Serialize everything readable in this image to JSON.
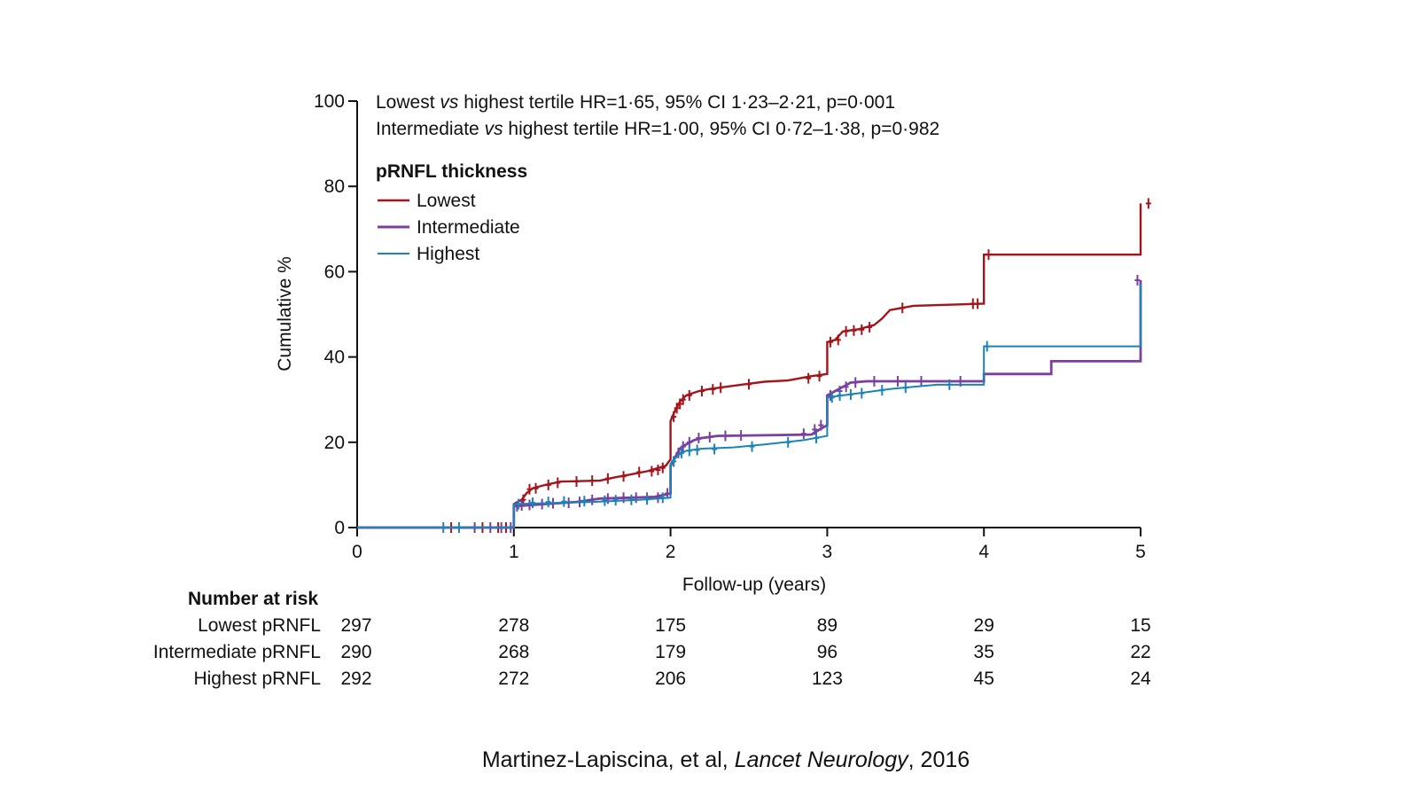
{
  "chart_data": {
    "type": "line",
    "step": true,
    "title": "",
    "xlabel": "Follow-up (years)",
    "ylabel": "Cumulative %",
    "xlim": [
      0,
      5
    ],
    "ylim": [
      0,
      100
    ],
    "xticks": [
      "0",
      "1",
      "2",
      "3",
      "4",
      "5"
    ],
    "yticks": [
      "0",
      "20",
      "40",
      "60",
      "80",
      "100"
    ],
    "grid": false,
    "annotations": {
      "line1_pre": "Lowest ",
      "line1_vs": "vs",
      "line1_post": " highest tertile HR=1·65, 95% CI 1·23–2·21, p=0·001",
      "line2_pre": "Intermediate ",
      "line2_vs": "vs",
      "line2_post": " highest tertile HR=1·00, 95% CI 0·72–1·38, p=0·982"
    },
    "legend": {
      "title": "pRNFL thickness",
      "placement": "top-left",
      "entries": [
        "Lowest",
        "Intermediate",
        "Highest"
      ]
    },
    "series": [
      {
        "name": "Lowest",
        "color": "#a3141b",
        "points": [
          [
            0,
            0
          ],
          [
            1,
            0
          ],
          [
            1,
            5.5
          ],
          [
            1.05,
            6.5
          ],
          [
            1.08,
            8
          ],
          [
            1.12,
            9.2
          ],
          [
            1.2,
            10
          ],
          [
            1.3,
            10.8
          ],
          [
            1.55,
            11
          ],
          [
            1.65,
            11.8
          ],
          [
            1.75,
            12.5
          ],
          [
            1.85,
            13.2
          ],
          [
            1.97,
            14.5
          ],
          [
            2,
            16
          ],
          [
            2,
            25
          ],
          [
            2.03,
            27.5
          ],
          [
            2.06,
            29.5
          ],
          [
            2.1,
            31
          ],
          [
            2.18,
            32
          ],
          [
            2.25,
            32.5
          ],
          [
            2.35,
            33
          ],
          [
            2.45,
            33.5
          ],
          [
            2.6,
            34.2
          ],
          [
            2.75,
            34.5
          ],
          [
            2.9,
            35.5
          ],
          [
            3,
            36
          ],
          [
            3,
            43.5
          ],
          [
            3.05,
            44
          ],
          [
            3.1,
            46
          ],
          [
            3.2,
            46.5
          ],
          [
            3.3,
            47.5
          ],
          [
            3.35,
            49
          ],
          [
            3.4,
            51
          ],
          [
            3.55,
            52
          ],
          [
            4,
            52.5
          ],
          [
            4,
            64
          ],
          [
            5,
            64
          ],
          [
            5,
            76
          ]
        ],
        "censor": [
          [
            0.6,
            0
          ],
          [
            0.8,
            0
          ],
          [
            0.9,
            0
          ],
          [
            0.95,
            0
          ],
          [
            1.06,
            6.5
          ],
          [
            1.1,
            9
          ],
          [
            1.14,
            9.2
          ],
          [
            1.22,
            10
          ],
          [
            1.28,
            10.5
          ],
          [
            1.4,
            10.8
          ],
          [
            1.5,
            11
          ],
          [
            1.6,
            11.5
          ],
          [
            1.7,
            12
          ],
          [
            1.8,
            13
          ],
          [
            1.88,
            13.2
          ],
          [
            1.92,
            13.5
          ],
          [
            1.95,
            14
          ],
          [
            2.02,
            26
          ],
          [
            2.04,
            28
          ],
          [
            2.06,
            29
          ],
          [
            2.08,
            30
          ],
          [
            2.12,
            31
          ],
          [
            2.2,
            32
          ],
          [
            2.27,
            32.4
          ],
          [
            2.32,
            32.8
          ],
          [
            2.5,
            33.6
          ],
          [
            2.88,
            35
          ],
          [
            2.95,
            35.5
          ],
          [
            3.02,
            43.5
          ],
          [
            3.07,
            44
          ],
          [
            3.12,
            46
          ],
          [
            3.17,
            46.2
          ],
          [
            3.22,
            46.4
          ],
          [
            3.27,
            47
          ],
          [
            3.48,
            51.5
          ],
          [
            3.93,
            52.5
          ],
          [
            3.96,
            52.5
          ],
          [
            4.03,
            64
          ],
          [
            5.05,
            76
          ]
        ]
      },
      {
        "name": "Intermediate",
        "color": "#7b3f9e",
        "points": [
          [
            0,
            0
          ],
          [
            1,
            0
          ],
          [
            1,
            5
          ],
          [
            1.2,
            5.5
          ],
          [
            1.4,
            6
          ],
          [
            1.55,
            6.8
          ],
          [
            1.75,
            7
          ],
          [
            1.9,
            7.2
          ],
          [
            2,
            8
          ],
          [
            2,
            14.5
          ],
          [
            2.03,
            16.5
          ],
          [
            2.06,
            18.5
          ],
          [
            2.1,
            19.5
          ],
          [
            2.15,
            20.5
          ],
          [
            2.2,
            21
          ],
          [
            2.3,
            21.5
          ],
          [
            2.9,
            21.8
          ],
          [
            2.95,
            23
          ],
          [
            3,
            24
          ],
          [
            3,
            31
          ],
          [
            3.05,
            32
          ],
          [
            3.1,
            33
          ],
          [
            3.15,
            34
          ],
          [
            3.25,
            34.3
          ],
          [
            4,
            34.3
          ],
          [
            4,
            36
          ],
          [
            4.43,
            36
          ],
          [
            4.43,
            39
          ],
          [
            5,
            39
          ],
          [
            5,
            58
          ]
        ],
        "censor": [
          [
            0.75,
            0
          ],
          [
            0.85,
            0
          ],
          [
            0.92,
            0
          ],
          [
            0.98,
            0
          ],
          [
            1.02,
            5
          ],
          [
            1.05,
            5.2
          ],
          [
            1.1,
            5.3
          ],
          [
            1.18,
            5.5
          ],
          [
            1.25,
            5.7
          ],
          [
            1.35,
            5.8
          ],
          [
            1.42,
            6
          ],
          [
            1.5,
            6.5
          ],
          [
            1.6,
            6.8
          ],
          [
            1.7,
            7
          ],
          [
            1.78,
            7
          ],
          [
            1.85,
            7
          ],
          [
            1.92,
            7
          ],
          [
            1.98,
            8
          ],
          [
            2.02,
            15.5
          ],
          [
            2.05,
            17.5
          ],
          [
            2.08,
            19
          ],
          [
            2.12,
            20
          ],
          [
            2.18,
            21
          ],
          [
            2.25,
            21.2
          ],
          [
            2.35,
            21.5
          ],
          [
            2.45,
            21.6
          ],
          [
            2.85,
            22
          ],
          [
            2.92,
            23
          ],
          [
            2.96,
            24
          ],
          [
            3.02,
            31
          ],
          [
            3.08,
            32
          ],
          [
            3.12,
            33
          ],
          [
            3.18,
            34
          ],
          [
            3.3,
            34.3
          ],
          [
            3.45,
            34.3
          ],
          [
            3.6,
            34.3
          ],
          [
            3.85,
            34.3
          ],
          [
            4.98,
            58
          ]
        ]
      },
      {
        "name": "Highest",
        "color": "#1a84b8",
        "points": [
          [
            0,
            0
          ],
          [
            1,
            0
          ],
          [
            1,
            5.5
          ],
          [
            1.5,
            6
          ],
          [
            1.8,
            6.5
          ],
          [
            2,
            7
          ],
          [
            2,
            15
          ],
          [
            2.05,
            17
          ],
          [
            2.1,
            18
          ],
          [
            2.2,
            18.5
          ],
          [
            2.4,
            18.8
          ],
          [
            2.6,
            19.5
          ],
          [
            2.85,
            20.5
          ],
          [
            3,
            21.5
          ],
          [
            3,
            30.5
          ],
          [
            3.1,
            31
          ],
          [
            3.2,
            31.5
          ],
          [
            3.4,
            32.5
          ],
          [
            3.55,
            33
          ],
          [
            3.7,
            33.5
          ],
          [
            4,
            33.5
          ],
          [
            4,
            42.5
          ],
          [
            5,
            42.5
          ],
          [
            5,
            57
          ]
        ],
        "censor": [
          [
            0.55,
            0
          ],
          [
            0.65,
            0
          ],
          [
            1.03,
            5.5
          ],
          [
            1.12,
            5.8
          ],
          [
            1.22,
            6
          ],
          [
            1.32,
            6.1
          ],
          [
            1.45,
            6.2
          ],
          [
            1.58,
            6.3
          ],
          [
            1.65,
            6.4
          ],
          [
            1.75,
            6.5
          ],
          [
            1.85,
            6.6
          ],
          [
            1.95,
            7
          ],
          [
            2.02,
            15.5
          ],
          [
            2.07,
            17.5
          ],
          [
            2.12,
            18
          ],
          [
            2.17,
            18.2
          ],
          [
            2.28,
            18.4
          ],
          [
            2.52,
            19
          ],
          [
            2.75,
            20
          ],
          [
            2.93,
            21
          ],
          [
            3.03,
            30.5
          ],
          [
            3.08,
            31
          ],
          [
            3.15,
            31.2
          ],
          [
            3.22,
            31.5
          ],
          [
            3.35,
            32.2
          ],
          [
            3.5,
            32.8
          ],
          [
            3.78,
            33.5
          ],
          [
            4.02,
            42.5
          ]
        ]
      }
    ],
    "risk_table": {
      "title": "Number at risk",
      "rows": [
        {
          "label": "Lowest pRNFL",
          "values": [
            "297",
            "278",
            "175",
            "89",
            "29",
            "15"
          ]
        },
        {
          "label": "Intermediate pRNFL",
          "values": [
            "290",
            "268",
            "179",
            "96",
            "35",
            "22"
          ]
        },
        {
          "label": "Highest pRNFL",
          "values": [
            "292",
            "272",
            "206",
            "123",
            "45",
            "24"
          ]
        }
      ]
    }
  },
  "citation": {
    "authors": "Martinez-Lapiscina, et al, ",
    "journal": "Lancet Neurology",
    "year": ", 2016"
  }
}
